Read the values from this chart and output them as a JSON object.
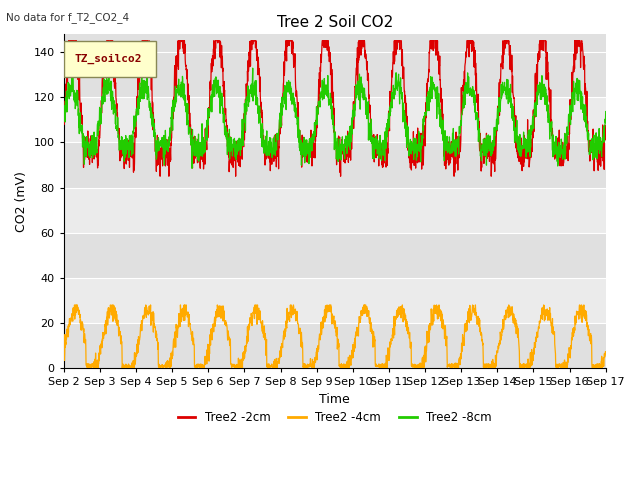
{
  "title": "Tree 2 Soil CO2",
  "no_data_text": "No data for f_T2_CO2_4",
  "ylabel": "CO2 (mV)",
  "xlabel": "Time",
  "legend_box_label": "TZ_soilco2",
  "ylim": [
    0,
    148
  ],
  "yticks": [
    0,
    20,
    40,
    60,
    80,
    100,
    120,
    140
  ],
  "xtick_labels": [
    "Sep 2",
    "Sep 3",
    "Sep 4",
    "Sep 5",
    "Sep 6",
    "Sep 7",
    "Sep 8",
    "Sep 9",
    "Sep 10",
    "Sep 11",
    "Sep 12",
    "Sep 13",
    "Sep 14",
    "Sep 15",
    "Sep 16",
    "Sep 17"
  ],
  "line_colors": {
    "red": "#dd0000",
    "orange": "#ffaa00",
    "green": "#22cc00"
  },
  "legend_labels": [
    "Tree2 -2cm",
    "Tree2 -4cm",
    "Tree2 -8cm"
  ],
  "background_color": "#ffffff",
  "plot_bg_color": "#e0e0e0",
  "band_light_color": "#ebebeb",
  "title_fontsize": 11,
  "label_fontsize": 9,
  "tick_fontsize": 8,
  "legend_box_text_color": "#880000"
}
